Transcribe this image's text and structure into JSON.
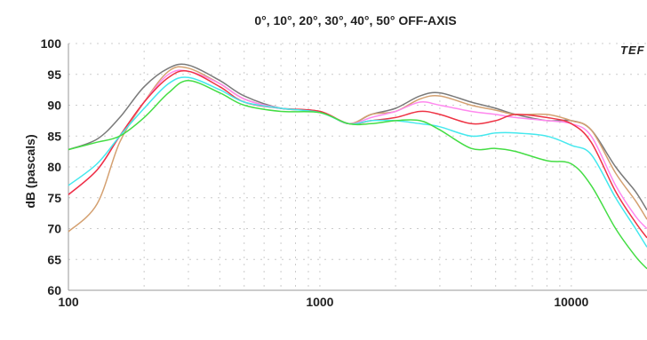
{
  "chart_data": {
    "type": "line",
    "title": "0°, 10°, 20°, 30°, 40°, 50° OFF-AXIS",
    "xlabel": "",
    "ylabel": "dB (pascals)",
    "x_scale": "log",
    "xlim": [
      100,
      20000
    ],
    "ylim": [
      60,
      100
    ],
    "x_ticks": [
      100,
      1000,
      10000
    ],
    "x_tick_labels": [
      "100",
      "1000",
      "10000"
    ],
    "y_ticks": [
      60,
      65,
      70,
      75,
      80,
      85,
      90,
      95,
      100
    ],
    "y_tick_labels": [
      "60",
      "65",
      "70",
      "75",
      "80",
      "85",
      "90",
      "95",
      "100"
    ],
    "grid": true,
    "logo_text": "TEF",
    "series": [
      {
        "color": "#7a7a7a",
        "x": [
          100,
          130,
          160,
          200,
          250,
          300,
          400,
          500,
          700,
          1000,
          1300,
          1600,
          2000,
          2500,
          3000,
          4000,
          5000,
          6000,
          8000,
          10000,
          12000,
          15000,
          18000,
          20000
        ],
        "y": [
          82.8,
          84.5,
          88,
          93,
          96,
          96.5,
          94,
          91.5,
          89.5,
          89,
          87,
          88.5,
          89.5,
          91.5,
          92,
          90.5,
          89.5,
          88.5,
          87.5,
          87.5,
          86,
          80,
          76,
          73
        ]
      },
      {
        "color": "#d4a070",
        "x": [
          100,
          130,
          160,
          200,
          250,
          300,
          400,
          500,
          700,
          1000,
          1300,
          1600,
          2000,
          2500,
          3000,
          4000,
          5000,
          6000,
          8000,
          10000,
          12000,
          15000,
          18000,
          20000
        ],
        "y": [
          69.5,
          74,
          84,
          90.5,
          95.5,
          96,
          93.5,
          91,
          89.5,
          89,
          87,
          88.5,
          89,
          91,
          91.5,
          90,
          89.2,
          88.5,
          88.5,
          87.5,
          86,
          79,
          74.5,
          71.5
        ]
      },
      {
        "color": "#ff88ee",
        "x": [
          100,
          130,
          160,
          200,
          250,
          300,
          400,
          500,
          700,
          1000,
          1300,
          1600,
          2000,
          2500,
          3000,
          4000,
          5000,
          6000,
          8000,
          10000,
          12000,
          15000,
          18000,
          20000
        ],
        "y": [
          75.5,
          79.5,
          85,
          90.5,
          95,
          95.5,
          93.5,
          91,
          89.5,
          89,
          87,
          88,
          89,
          90.5,
          90,
          89,
          88.5,
          88,
          87.5,
          87,
          85,
          77,
          72,
          70
        ]
      },
      {
        "color": "#ee3344",
        "x": [
          100,
          130,
          160,
          200,
          250,
          300,
          400,
          500,
          700,
          1000,
          1300,
          1600,
          2000,
          2500,
          3000,
          4000,
          5000,
          6000,
          8000,
          10000,
          12000,
          15000,
          18000,
          20000
        ],
        "y": [
          75.5,
          79.5,
          85,
          90.5,
          94.5,
          95.5,
          93,
          90.5,
          89.5,
          89,
          87,
          87.5,
          88,
          89,
          88.5,
          87,
          87.5,
          88.5,
          88,
          87,
          84,
          76,
          71,
          68.5
        ]
      },
      {
        "color": "#44e8ee",
        "x": [
          100,
          130,
          160,
          200,
          250,
          300,
          400,
          500,
          700,
          1000,
          1300,
          1600,
          2000,
          2500,
          3000,
          4000,
          5000,
          6000,
          8000,
          10000,
          12000,
          15000,
          18000,
          20000
        ],
        "y": [
          77,
          80.5,
          85,
          89.5,
          93.5,
          94.5,
          92.5,
          90.5,
          89.5,
          88.8,
          87,
          87.5,
          87.5,
          87,
          86.5,
          85,
          85.5,
          85.5,
          85,
          83.5,
          82,
          75,
          70,
          67
        ]
      },
      {
        "color": "#44dd44",
        "x": [
          100,
          130,
          160,
          200,
          250,
          300,
          400,
          500,
          700,
          1000,
          1300,
          1600,
          2000,
          2500,
          3000,
          4000,
          5000,
          6000,
          8000,
          10000,
          12000,
          15000,
          18000,
          20000
        ],
        "y": [
          82.8,
          84,
          85,
          88,
          92,
          94,
          92,
          90,
          89,
          88.8,
          87,
          87,
          87.5,
          87.5,
          86,
          83,
          83,
          82.5,
          81,
          80.5,
          77,
          70,
          65.5,
          63.5
        ]
      }
    ]
  }
}
